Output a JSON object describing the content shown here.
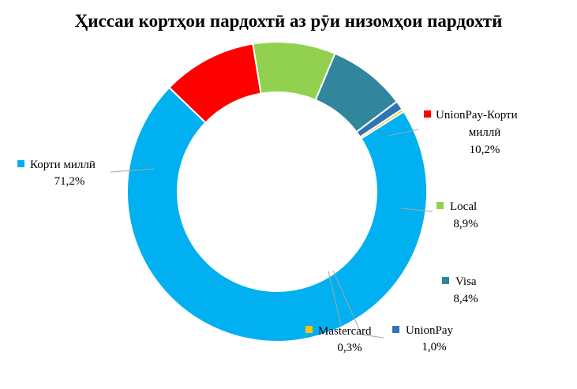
{
  "chart_data": {
    "type": "pie",
    "variant": "donut",
    "title": "Ҳиссаи кортҳои пардохтӣ аз рӯи низомҳои пардохтӣ",
    "series": [
      {
        "name": "UnionPay-Корти миллӣ",
        "value": 10.2,
        "label": "10,2%",
        "color": "#ff0000"
      },
      {
        "name": "Local",
        "value": 8.9,
        "label": "8,9%",
        "color": "#92d050"
      },
      {
        "name": "Visa",
        "value": 8.4,
        "label": "8,4%",
        "color": "#31859c"
      },
      {
        "name": "UnionPay",
        "value": 1.0,
        "label": "1,0%",
        "color": "#2e75b6"
      },
      {
        "name": "Mastercard",
        "value": 0.3,
        "label": "0,3%",
        "color": "#ffc000"
      },
      {
        "name": "Корти миллӣ",
        "value": 71.2,
        "label": "71,2%",
        "color": "#00b0f0"
      }
    ],
    "legend": "inline-labels"
  }
}
